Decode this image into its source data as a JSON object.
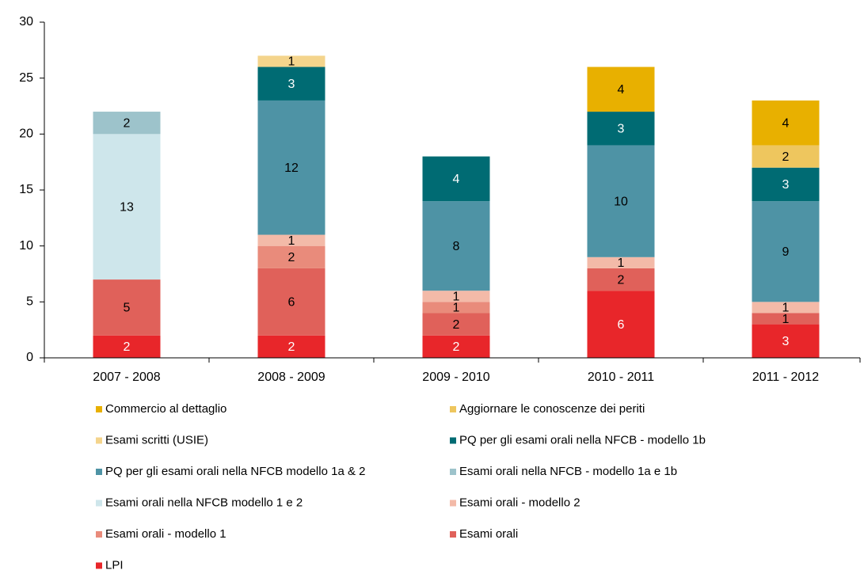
{
  "chart_data": {
    "type": "stacked_bar",
    "categories": [
      "2007 - 2008",
      "2008 - 2009",
      "2009 - 2010",
      "2010 - 2011",
      "2011 - 2012"
    ],
    "ylim": [
      0,
      30
    ],
    "yticks": [
      0,
      5,
      10,
      15,
      20,
      25,
      30
    ],
    "series": [
      {
        "name": "Commercio al dettaglio",
        "color": "#e8b000",
        "label_color": "#000000",
        "values": [
          null,
          null,
          null,
          4,
          4
        ]
      },
      {
        "name": "Aggiornare le conoscenze dei periti",
        "color": "#eec65e",
        "label_color": "#000000",
        "values": [
          null,
          null,
          null,
          null,
          2
        ]
      },
      {
        "name": "Esami scritti (USIE)",
        "color": "#f4d48c",
        "label_color": "#000000",
        "values": [
          null,
          1,
          null,
          null,
          null
        ]
      },
      {
        "name": "PQ per gli esami orali nella NFCB - modello 1b",
        "color": "#006b73",
        "label_color": "#ffffff",
        "values": [
          null,
          3,
          4,
          3,
          3
        ]
      },
      {
        "name": "PQ per gli esami orali nella NFCB modello 1a & 2",
        "color": "#4e93a5",
        "label_color": "#000000",
        "values": [
          null,
          12,
          8,
          10,
          9
        ]
      },
      {
        "name": "Esami orali nella NFCB - modello 1a e 1b",
        "color": "#9dc3cb",
        "label_color": "#000000",
        "values": [
          2,
          null,
          null,
          null,
          null
        ]
      },
      {
        "name": "Esami orali nella NFCB  modello 1 e 2",
        "color": "#cee6eb",
        "label_color": "#000000",
        "values": [
          13,
          null,
          null,
          null,
          null
        ]
      },
      {
        "name": "Esami orali - modello 2",
        "color": "#f3baa8",
        "label_color": "#000000",
        "values": [
          null,
          1,
          1,
          1,
          1
        ]
      },
      {
        "name": "Esami orali - modello 1",
        "color": "#e98b7b",
        "label_color": "#000000",
        "values": [
          null,
          2,
          1,
          null,
          null
        ]
      },
      {
        "name": "Esami orali",
        "color": "#e0615a",
        "label_color": "#000000",
        "values": [
          5,
          6,
          2,
          2,
          1
        ]
      },
      {
        "name": "LPI",
        "color": "#e8262a",
        "label_color": "#ffffff",
        "values": [
          2,
          2,
          2,
          6,
          3
        ]
      }
    ]
  }
}
